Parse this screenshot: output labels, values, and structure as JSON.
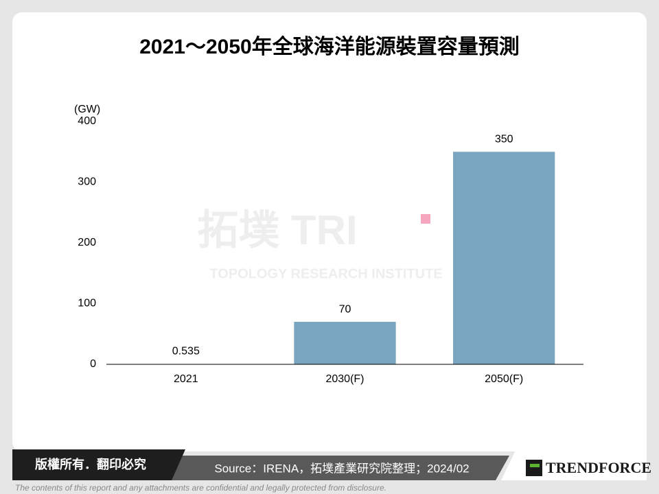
{
  "chart_data": {
    "type": "bar",
    "title": "2021～2050年全球海洋能源裝置容量預測",
    "y_unit": "(GW)",
    "categories": [
      "2021",
      "2030(F)",
      "2050(F)"
    ],
    "values": [
      0.535,
      70,
      350
    ],
    "color": "#7aa5c0",
    "ylim": [
      0,
      400
    ],
    "yticks": [
      0,
      100,
      200,
      300,
      400
    ],
    "grid": false
  },
  "watermark": {
    "logo": "拓墣 TRI",
    "name": "TOPOLOGY RESEARCH INSTITUTE"
  },
  "footer": {
    "rights": "版權所有．翻印必究",
    "source": "Source：IRENA，拓墣產業研究院整理；2024/02",
    "brand": "TRENDFORCE",
    "disclaimer": "The contents of this report and any attachments are confidential and legally protected from disclosure."
  }
}
